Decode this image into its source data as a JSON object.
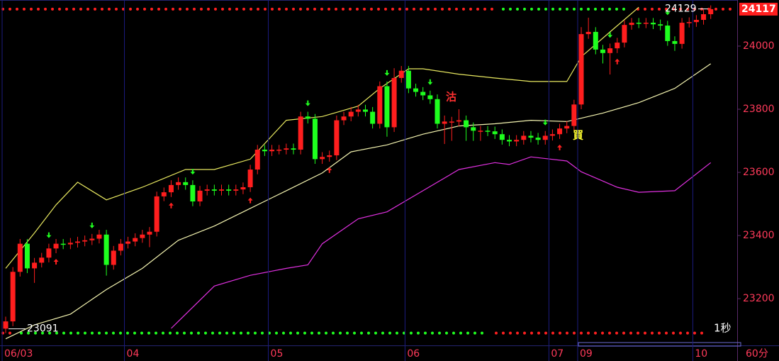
{
  "chart_data": {
    "type": "candlestick",
    "timeframe": "60分",
    "refresh": "1秒",
    "annotations": [
      "沽",
      "買"
    ],
    "high_label": 24129,
    "low_label": 23091,
    "last_price": 24117,
    "up_color": "#ff1e1e",
    "down_color": "#1eff1e",
    "ylim": [
      23052,
      24146
    ],
    "yticks": [
      23200,
      23400,
      23600,
      23800,
      24000
    ],
    "categories": [
      "06/03",
      null,
      null,
      null,
      null,
      null,
      null,
      null,
      null,
      null,
      null,
      null,
      null,
      null,
      null,
      null,
      null,
      "04",
      null,
      null,
      null,
      null,
      null,
      null,
      null,
      null,
      null,
      null,
      null,
      null,
      null,
      null,
      null,
      null,
      null,
      null,
      null,
      "05",
      null,
      null,
      null,
      null,
      null,
      null,
      null,
      null,
      null,
      null,
      null,
      null,
      null,
      null,
      null,
      null,
      null,
      null,
      "06",
      null,
      null,
      null,
      null,
      null,
      null,
      null,
      null,
      null,
      null,
      null,
      null,
      null,
      null,
      null,
      null,
      null,
      null,
      null,
      "07",
      null,
      null,
      null,
      "09",
      null,
      null,
      null,
      null,
      null,
      null,
      null,
      null,
      null,
      null,
      null,
      null,
      null,
      null,
      null,
      "10",
      null,
      null
    ],
    "open": [
      23105,
      23128,
      23285,
      23374,
      23296,
      23314,
      23330,
      23359,
      23374,
      23372,
      23377,
      23381,
      23385,
      23390,
      23403,
      23307,
      23352,
      23374,
      23381,
      23392,
      23403,
      23412,
      23524,
      23537,
      23560,
      23569,
      23560,
      23508,
      23542,
      23546,
      23542,
      23546,
      23542,
      23546,
      23553,
      23609,
      23672,
      23667,
      23672,
      23672,
      23676,
      23672,
      23777,
      23770,
      23642,
      23649,
      23654,
      23765,
      23777,
      23792,
      23799,
      23792,
      23754,
      23873,
      23743,
      23899,
      23922,
      23866,
      23855,
      23844,
      23832,
      23754,
      23761,
      23761,
      23765,
      23743,
      23732,
      23732,
      23730,
      23721,
      23703,
      23698,
      23703,
      23716,
      23710,
      23703,
      23716,
      23721,
      23739,
      23747,
      23815,
      24038,
      24045,
      23989,
      23978,
      23993,
      24011,
      24067,
      24074,
      24072,
      24074,
      24069,
      24065,
      24016,
      24007,
      24074,
      24076,
      24083,
      24101
    ],
    "high": [
      23143,
      23300,
      23389,
      23389,
      23329,
      23345,
      23374,
      23389,
      23389,
      23392,
      23396,
      23400,
      23405,
      23418,
      23418,
      23367,
      23389,
      23396,
      23407,
      23418,
      23427,
      23539,
      23552,
      23575,
      23584,
      23584,
      23575,
      23557,
      23561,
      23561,
      23561,
      23561,
      23561,
      23568,
      23624,
      23687,
      23687,
      23687,
      23687,
      23691,
      23691,
      23792,
      23792,
      23785,
      23664,
      23669,
      23780,
      23792,
      23807,
      23814,
      23814,
      23807,
      23888,
      23888,
      23930,
      23937,
      23937,
      23881,
      23870,
      23859,
      23847,
      23780,
      23776,
      23800,
      23780,
      23758,
      23747,
      23747,
      23745,
      23736,
      23718,
      23718,
      23731,
      23731,
      23725,
      23731,
      23736,
      23754,
      23762,
      23830,
      24060,
      24090,
      24060,
      24004,
      24008,
      24026,
      24082,
      24089,
      24089,
      24089,
      24089,
      24084,
      24080,
      24031,
      24089,
      24091,
      24098,
      24116,
      24129
    ],
    "low": [
      23091,
      23113,
      23270,
      23281,
      23250,
      23299,
      23315,
      23344,
      23357,
      23357,
      23362,
      23366,
      23370,
      23375,
      23273,
      23292,
      23337,
      23359,
      23366,
      23377,
      23363,
      23397,
      23509,
      23522,
      23545,
      23545,
      23493,
      23493,
      23527,
      23527,
      23527,
      23527,
      23527,
      23531,
      23538,
      23594,
      23652,
      23652,
      23657,
      23657,
      23657,
      23657,
      23755,
      23627,
      23627,
      23634,
      23639,
      23750,
      23762,
      23777,
      23777,
      23739,
      23739,
      23713,
      23728,
      23884,
      23851,
      23840,
      23829,
      23817,
      23739,
      23690,
      23700,
      23746,
      23700,
      23700,
      23700,
      23715,
      23706,
      23688,
      23683,
      23683,
      23688,
      23695,
      23688,
      23688,
      23701,
      23706,
      23724,
      23732,
      23800,
      24023,
      23974,
      23945,
      23910,
      23978,
      23996,
      24052,
      24057,
      24057,
      24054,
      24050,
      24001,
      23985,
      23992,
      24059,
      24061,
      24068,
      24086
    ],
    "close": [
      23128,
      23285,
      23374,
      23296,
      23314,
      23330,
      23359,
      23374,
      23372,
      23377,
      23381,
      23385,
      23390,
      23403,
      23307,
      23352,
      23374,
      23381,
      23392,
      23403,
      23412,
      23524,
      23537,
      23560,
      23569,
      23560,
      23508,
      23542,
      23546,
      23542,
      23546,
      23542,
      23546,
      23553,
      23609,
      23672,
      23667,
      23672,
      23672,
      23676,
      23672,
      23777,
      23770,
      23642,
      23649,
      23654,
      23765,
      23777,
      23792,
      23799,
      23792,
      23754,
      23873,
      23743,
      23899,
      23922,
      23866,
      23855,
      23844,
      23832,
      23754,
      23761,
      23761,
      23765,
      23743,
      23732,
      23732,
      23730,
      23721,
      23703,
      23698,
      23703,
      23716,
      23710,
      23703,
      23716,
      23721,
      23739,
      23747,
      23815,
      24038,
      24045,
      23989,
      23978,
      23993,
      24011,
      24067,
      24074,
      24072,
      24074,
      24069,
      24065,
      24016,
      24007,
      24074,
      24076,
      24083,
      24101,
      24117
    ],
    "up_arrows": [
      7,
      23,
      34,
      45,
      77,
      85
    ],
    "down_arrows": [
      6,
      12,
      26,
      42,
      53,
      59,
      75,
      84,
      92
    ],
    "lines": [
      {
        "color": "#e8e860",
        "x": [
          0,
          4,
          7,
          10,
          14,
          19,
          25,
          29,
          34,
          39,
          44,
          49,
          52,
          56,
          58,
          63,
          68,
          73,
          78,
          80,
          84,
          88
        ],
        "values": [
          23296,
          23408,
          23497,
          23569,
          23513,
          23553,
          23609,
          23609,
          23642,
          23765,
          23777,
          23810,
          23866,
          23928,
          23928,
          23911,
          23899,
          23888,
          23888,
          23966,
          24045,
          24123
        ]
      },
      {
        "color": "#f4f4b0",
        "x": [
          0,
          4,
          9,
          14,
          19,
          24,
          29,
          34,
          39,
          44,
          48,
          53,
          58,
          63,
          68,
          73,
          78,
          83,
          88,
          93,
          98
        ],
        "values": [
          23073,
          23117,
          23151,
          23229,
          23296,
          23385,
          23430,
          23486,
          23542,
          23598,
          23665,
          23687,
          23721,
          23747,
          23754,
          23765,
          23761,
          23788,
          23821,
          23866,
          23944
        ]
      },
      {
        "color": "#e030e0",
        "x": [
          23,
          29,
          34,
          39,
          42,
          44,
          49,
          53,
          58,
          63,
          68,
          70,
          73,
          78,
          80,
          85,
          88,
          93,
          98
        ],
        "values": [
          23106,
          23240,
          23274,
          23296,
          23307,
          23374,
          23453,
          23475,
          23542,
          23609,
          23631,
          23625,
          23649,
          23636,
          23602,
          23553,
          23537,
          23542,
          23631
        ]
      }
    ]
  }
}
